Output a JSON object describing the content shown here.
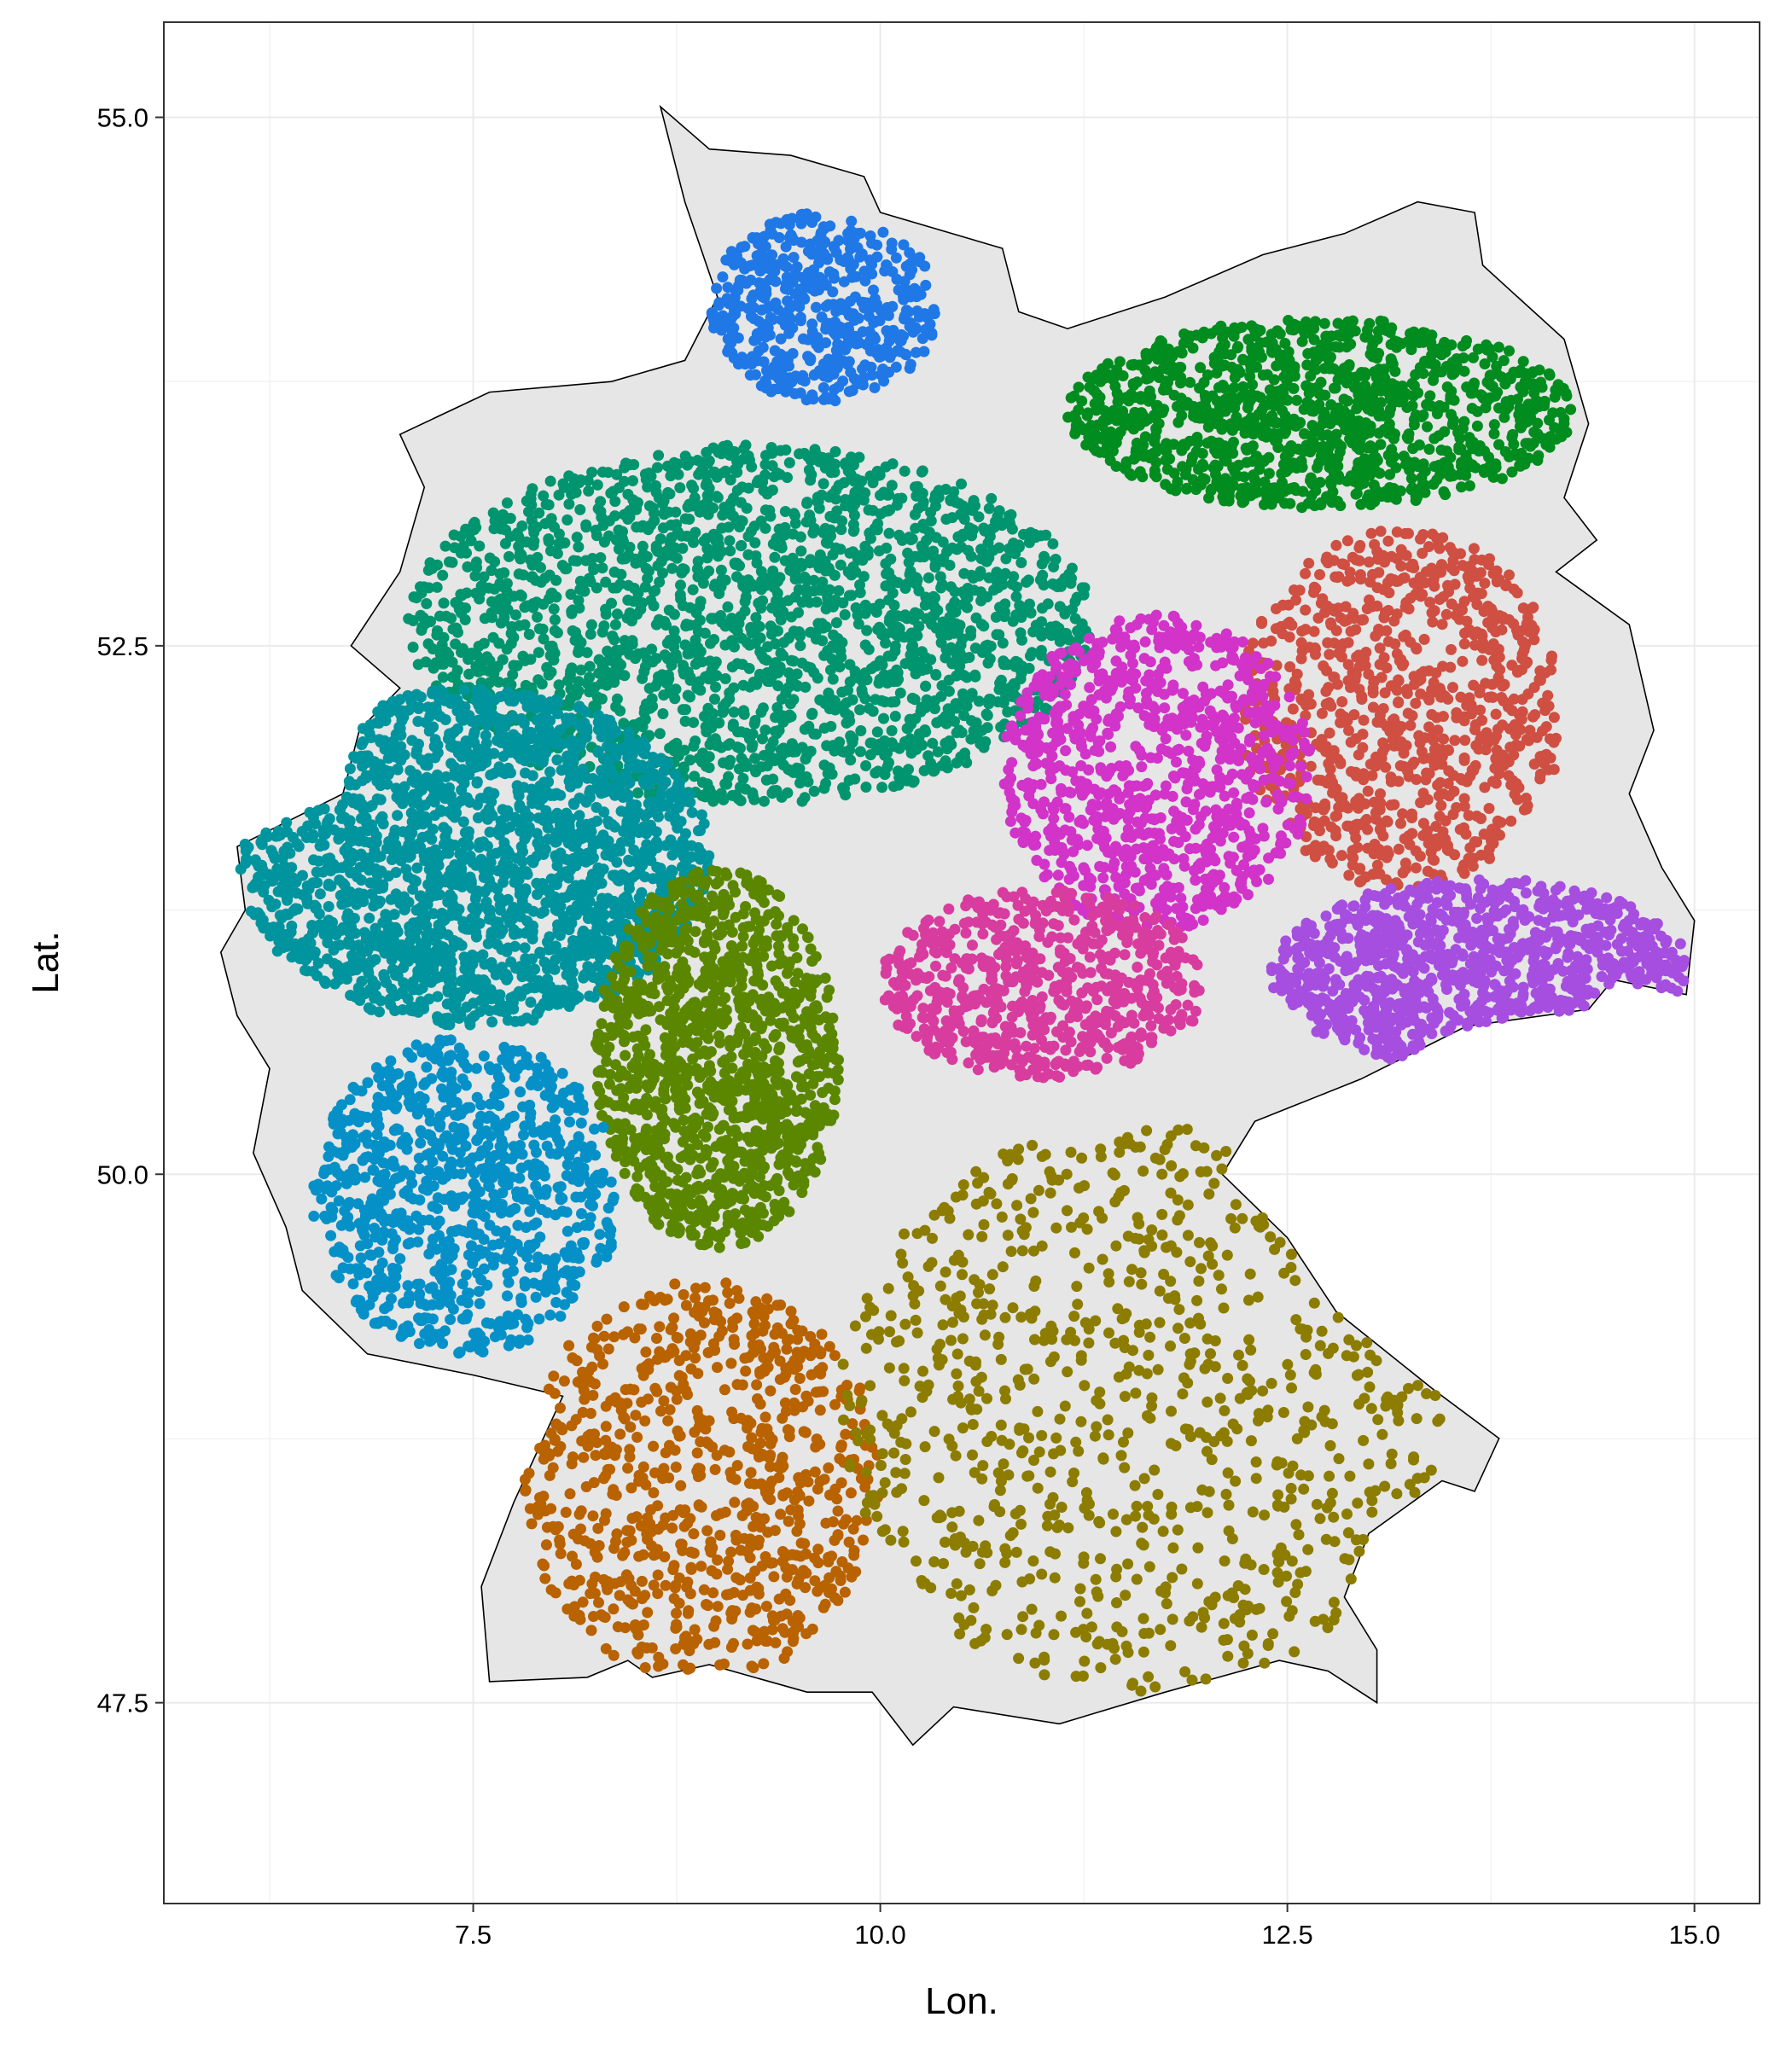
{
  "chart_data": {
    "type": "scatter",
    "title": "",
    "xlabel": "Lon.",
    "ylabel": "Lat.",
    "xlim": [
      5.6,
      15.4
    ],
    "ylim": [
      46.55,
      55.45
    ],
    "grid": true,
    "legend": "none",
    "x_ticks": [
      {
        "value": 7.5,
        "label": "7.5"
      },
      {
        "value": 10.0,
        "label": "10.0"
      },
      {
        "value": 12.5,
        "label": "12.5"
      },
      {
        "value": 15.0,
        "label": "15.0"
      }
    ],
    "y_ticks": [
      {
        "value": 47.5,
        "label": "47.5"
      },
      {
        "value": 50.0,
        "label": "50.0"
      },
      {
        "value": 52.5,
        "label": "52.5"
      },
      {
        "value": 55.0,
        "label": "55.0"
      }
    ],
    "background_map": {
      "fill": "#e6e6e6",
      "stroke": "#000000",
      "outline": [
        [
          8.65,
          55.05
        ],
        [
          8.95,
          54.85
        ],
        [
          9.45,
          54.82
        ],
        [
          9.9,
          54.72
        ],
        [
          10.0,
          54.55
        ],
        [
          10.75,
          54.38
        ],
        [
          10.85,
          54.08
        ],
        [
          11.15,
          54.0
        ],
        [
          11.75,
          54.15
        ],
        [
          12.35,
          54.35
        ],
        [
          12.85,
          54.45
        ],
        [
          13.3,
          54.6
        ],
        [
          13.65,
          54.55
        ],
        [
          13.7,
          54.3
        ],
        [
          14.2,
          53.95
        ],
        [
          14.35,
          53.55
        ],
        [
          14.2,
          53.2
        ],
        [
          14.4,
          53.0
        ],
        [
          14.15,
          52.85
        ],
        [
          14.6,
          52.6
        ],
        [
          14.75,
          52.1
        ],
        [
          14.6,
          51.8
        ],
        [
          14.8,
          51.45
        ],
        [
          15.0,
          51.2
        ],
        [
          14.95,
          50.85
        ],
        [
          14.5,
          50.92
        ],
        [
          14.35,
          50.78
        ],
        [
          13.6,
          50.7
        ],
        [
          12.95,
          50.45
        ],
        [
          12.3,
          50.25
        ],
        [
          12.1,
          50.0
        ],
        [
          12.5,
          49.7
        ],
        [
          12.8,
          49.35
        ],
        [
          13.4,
          48.98
        ],
        [
          13.8,
          48.75
        ],
        [
          13.65,
          48.5
        ],
        [
          13.45,
          48.55
        ],
        [
          13.0,
          48.3
        ],
        [
          12.85,
          48.0
        ],
        [
          13.05,
          47.75
        ],
        [
          13.05,
          47.5
        ],
        [
          12.75,
          47.65
        ],
        [
          12.45,
          47.7
        ],
        [
          11.75,
          47.55
        ],
        [
          11.1,
          47.4
        ],
        [
          10.45,
          47.48
        ],
        [
          10.2,
          47.3
        ],
        [
          9.95,
          47.55
        ],
        [
          9.55,
          47.55
        ],
        [
          8.95,
          47.68
        ],
        [
          8.6,
          47.62
        ],
        [
          8.45,
          47.7
        ],
        [
          8.2,
          47.62
        ],
        [
          7.6,
          47.6
        ],
        [
          7.55,
          48.05
        ],
        [
          7.75,
          48.45
        ],
        [
          8.05,
          48.95
        ],
        [
          7.5,
          49.05
        ],
        [
          6.85,
          49.15
        ],
        [
          6.45,
          49.45
        ],
        [
          6.35,
          49.75
        ],
        [
          6.15,
          50.1
        ],
        [
          6.25,
          50.5
        ],
        [
          6.05,
          50.75
        ],
        [
          5.95,
          51.05
        ],
        [
          6.1,
          51.25
        ],
        [
          6.05,
          51.55
        ],
        [
          6.7,
          51.8
        ],
        [
          6.8,
          52.1
        ],
        [
          7.05,
          52.3
        ],
        [
          6.75,
          52.5
        ],
        [
          7.05,
          52.85
        ],
        [
          7.2,
          53.25
        ],
        [
          7.05,
          53.5
        ],
        [
          7.6,
          53.7
        ],
        [
          8.35,
          53.75
        ],
        [
          8.8,
          53.85
        ],
        [
          9.0,
          54.15
        ],
        [
          8.8,
          54.6
        ]
      ]
    },
    "series": [
      {
        "color": "#1f78e6",
        "center": [
          9.65,
          54.1
        ],
        "radius": [
          0.7,
          0.45
        ],
        "count": 520,
        "seed": 11
      },
      {
        "color": "#008c1e",
        "center": [
          12.7,
          53.6
        ],
        "radius": [
          1.55,
          0.45
        ],
        "count": 1200,
        "seed": 23
      },
      {
        "color": "#cf4f42",
        "center": [
          13.2,
          52.2
        ],
        "radius": [
          1.0,
          0.85
        ],
        "count": 900,
        "seed": 37
      },
      {
        "color": "#00956e",
        "center": [
          9.2,
          52.6
        ],
        "radius": [
          2.1,
          0.85
        ],
        "count": 2100,
        "seed": 41
      },
      {
        "color": "#d233c8",
        "center": [
          11.7,
          51.9
        ],
        "radius": [
          0.95,
          0.75
        ],
        "count": 900,
        "seed": 53
      },
      {
        "color": "#00959e",
        "center": [
          7.5,
          51.5
        ],
        "radius": [
          1.45,
          0.8
        ],
        "count": 2000,
        "seed": 61
      },
      {
        "color": "#d83c9f",
        "center": [
          11.0,
          50.9
        ],
        "radius": [
          1.0,
          0.45
        ],
        "count": 650,
        "seed": 71
      },
      {
        "color": "#a64ee0",
        "center": [
          13.7,
          50.95
        ],
        "radius": [
          1.3,
          0.45
        ],
        "count": 950,
        "seed": 83
      },
      {
        "color": "#5b8700",
        "center": [
          9.0,
          50.55
        ],
        "radius": [
          0.75,
          0.9
        ],
        "count": 1200,
        "seed": 97
      },
      {
        "color": "#0591c8",
        "center": [
          7.45,
          49.9
        ],
        "radius": [
          0.95,
          0.75
        ],
        "count": 900,
        "seed": 101
      },
      {
        "color": "#b86200",
        "center": [
          8.9,
          48.55
        ],
        "radius": [
          1.1,
          0.95
        ],
        "count": 800,
        "seed": 113
      },
      {
        "color": "#8c7c00",
        "center": [
          11.6,
          48.9
        ],
        "radius": [
          1.85,
          1.35
        ],
        "count": 850,
        "seed": 127
      }
    ]
  }
}
